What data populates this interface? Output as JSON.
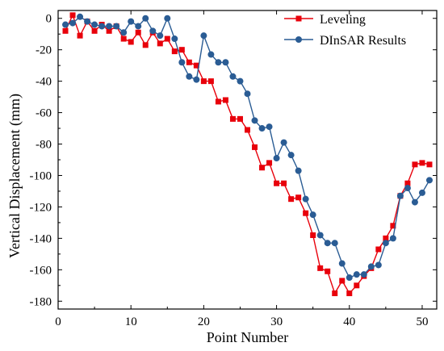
{
  "chart_data": {
    "type": "line",
    "title": "",
    "xlabel": "Point Number",
    "ylabel": "Vertical Displacement (mm)",
    "xlim": [
      0,
      52
    ],
    "ylim": [
      -185,
      5
    ],
    "xticks": [
      0,
      10,
      20,
      30,
      40,
      50
    ],
    "yticks": [
      0,
      -20,
      -40,
      -60,
      -80,
      -100,
      -120,
      -140,
      -160,
      -180
    ],
    "grid": false,
    "legend_position": "top-right",
    "x": [
      1,
      2,
      3,
      4,
      5,
      6,
      7,
      8,
      9,
      10,
      11,
      12,
      13,
      14,
      15,
      16,
      17,
      18,
      19,
      20,
      21,
      22,
      23,
      24,
      25,
      26,
      27,
      28,
      29,
      30,
      31,
      32,
      33,
      34,
      35,
      36,
      37,
      38,
      39,
      40,
      41,
      42,
      43,
      44,
      45,
      46,
      47,
      48,
      49,
      50,
      51
    ],
    "series": [
      {
        "name": "Leveling",
        "color": "#e8000b",
        "marker": "square",
        "values": [
          -8,
          2,
          -11,
          -2,
          -8,
          -4,
          -8,
          -5,
          -13,
          -15,
          -9,
          -17,
          -9,
          -16,
          -13,
          -21,
          -20,
          -28,
          -30,
          -40,
          -40,
          -53,
          -52,
          -64,
          -64,
          -71,
          -82,
          -95,
          -92,
          -105,
          -105,
          -115,
          -114,
          -124,
          -138,
          -159,
          -161,
          -175,
          -167,
          -175,
          -170,
          -164,
          -159,
          -147,
          -140,
          -132,
          -113,
          -105,
          -93,
          -92,
          -93
        ]
      },
      {
        "name": "DInSAR Results",
        "color": "#2a5c94",
        "marker": "circle",
        "values": [
          -4,
          -3,
          1,
          -2,
          -4,
          -5,
          -5,
          -5,
          -9,
          -2,
          -5,
          0,
          -8,
          -11,
          0,
          -13,
          -28,
          -37,
          -39,
          -11,
          -23,
          -28,
          -28,
          -37,
          -40,
          -48,
          -65,
          -70,
          -69,
          -89,
          -79,
          -87,
          -97,
          -115,
          -125,
          -138,
          -143,
          -143,
          -156,
          -165,
          -163,
          -163,
          -158,
          -157,
          -143,
          -140,
          -113,
          -108,
          -117,
          -111,
          -103
        ]
      }
    ]
  }
}
